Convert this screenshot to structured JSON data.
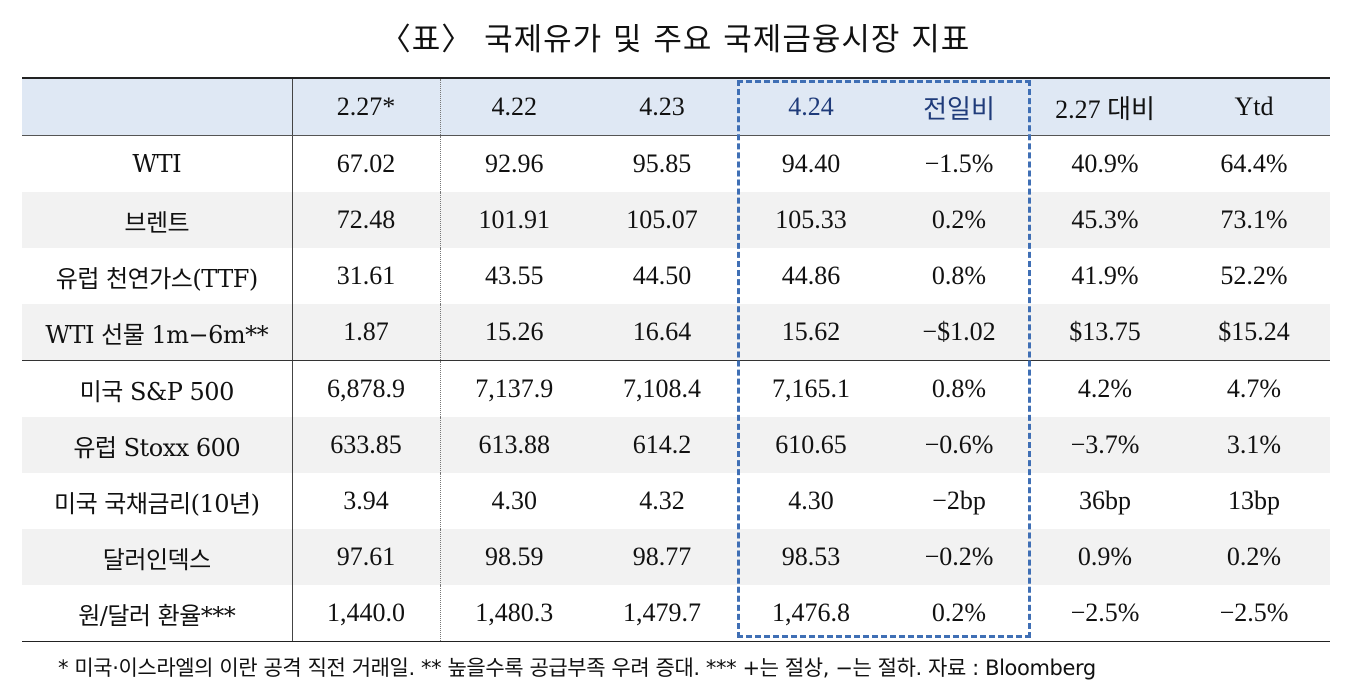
{
  "title": "〈표〉 국제유가 및 주요 국제금융시장 지표",
  "headers": [
    "",
    "2.27*",
    "4.22",
    "4.23",
    "4.24",
    "전일비",
    "2.27 대비",
    "Ytd"
  ],
  "rows": [
    [
      "WTI",
      "67.02",
      "92.96",
      "95.85",
      "94.40",
      "−1.5%",
      "40.9%",
      "64.4%"
    ],
    [
      "브렌트",
      "72.48",
      "101.91",
      "105.07",
      "105.33",
      "0.2%",
      "45.3%",
      "73.1%"
    ],
    [
      "유럽 천연가스(TTF)",
      "31.61",
      "43.55",
      "44.50",
      "44.86",
      "0.8%",
      "41.9%",
      "52.2%"
    ],
    [
      "WTI 선물 1m−6m**",
      "1.87",
      "15.26",
      "16.64",
      "15.62",
      "−$1.02",
      "$13.75",
      "$15.24"
    ],
    [
      "미국 S&P 500",
      "6,878.9",
      "7,137.9",
      "7,108.4",
      "7,165.1",
      "0.8%",
      "4.2%",
      "4.7%"
    ],
    [
      "유럽 Stoxx 600",
      "633.85",
      "613.88",
      "614.2",
      "610.65",
      "−0.6%",
      "−3.7%",
      "3.1%"
    ],
    [
      "미국 국채금리(10년)",
      "3.94",
      "4.30",
      "4.32",
      "4.30",
      "−2bp",
      "36bp",
      "13bp"
    ],
    [
      "달러인덱스",
      "97.61",
      "98.59",
      "98.77",
      "98.53",
      "−0.2%",
      "0.9%",
      "0.2%"
    ],
    [
      "원/달러 환율***",
      "1,440.0",
      "1,480.3",
      "1,479.7",
      "1,476.8",
      "0.2%",
      "−2.5%",
      "−2.5%"
    ]
  ],
  "footnote": "* 미국·이스라엘의 이란 공격 직전 거래일. ** 높을수록 공급부족 우려 증대. *** +는 절상, −는 절하. 자료 : Bloomberg",
  "colors": {
    "header_bg": "#dfe8f4",
    "highlight_border": "#3f6fb5",
    "highlight_text": "#1f3b7a",
    "stripe_bg": "#f2f2f2"
  }
}
